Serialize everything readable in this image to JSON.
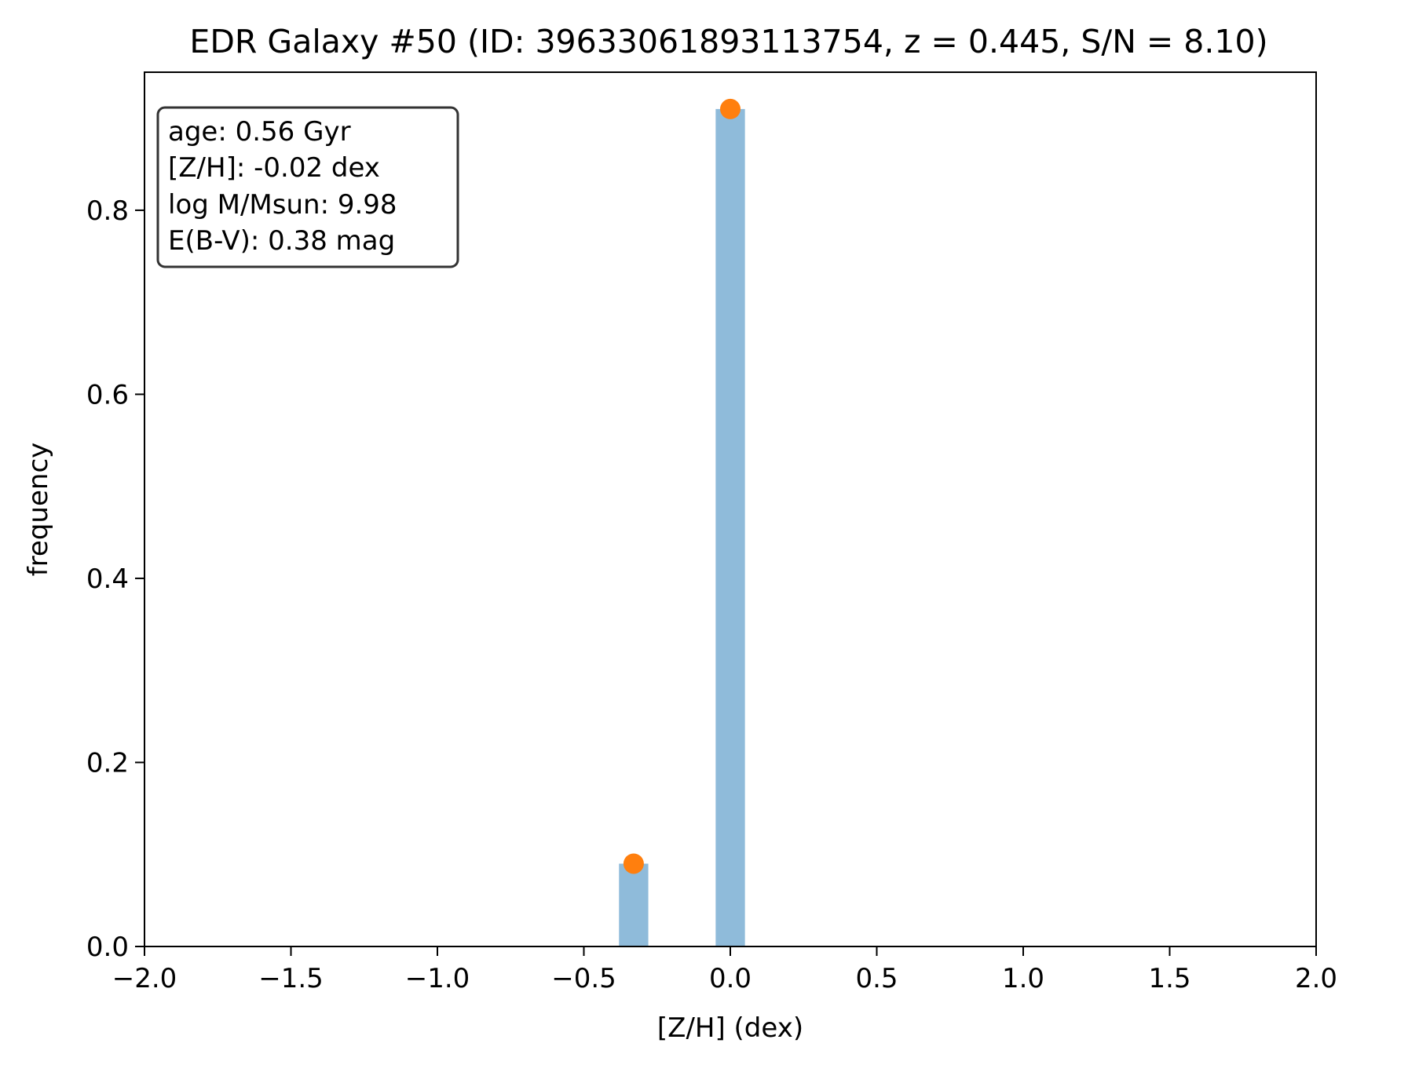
{
  "chart_data": {
    "type": "bar",
    "title": "EDR Galaxy #50 (ID: 39633061893113754, z = 0.445, S/N = 8.10)",
    "xlabel": "[Z/H] (dex)",
    "ylabel": "frequency",
    "xlim": [
      -2.0,
      2.0
    ],
    "ylim": [
      0.0,
      0.95
    ],
    "grid": false,
    "x_ticks": [
      -2.0,
      -1.5,
      -1.0,
      -0.5,
      0.0,
      0.5,
      1.0,
      1.5,
      2.0
    ],
    "x_tick_labels": [
      "−2.0",
      "−1.5",
      "−1.0",
      "−0.5",
      "0.0",
      "0.5",
      "1.0",
      "1.5",
      "2.0"
    ],
    "y_ticks": [
      0.0,
      0.2,
      0.4,
      0.6,
      0.8
    ],
    "y_tick_labels": [
      "0.0",
      "0.2",
      "0.4",
      "0.6",
      "0.8"
    ],
    "bars": [
      {
        "x": -0.33,
        "width": 0.1,
        "value": 0.09
      },
      {
        "x": 0.0,
        "width": 0.1,
        "value": 0.91
      }
    ],
    "points": [
      {
        "x": -0.33,
        "y": 0.09
      },
      {
        "x": 0.0,
        "y": 0.91
      }
    ],
    "info_box": {
      "placement": "top-left",
      "lines": [
        "age: 0.56 Gyr",
        "[Z/H]: -0.02 dex",
        "log M/Msun: 9.98",
        "E(B-V): 0.38 mag"
      ]
    },
    "colors": {
      "bar": "#8fbbda",
      "point": "#ff7f0e",
      "axis": "#000000",
      "box_edge": "#333333"
    }
  }
}
